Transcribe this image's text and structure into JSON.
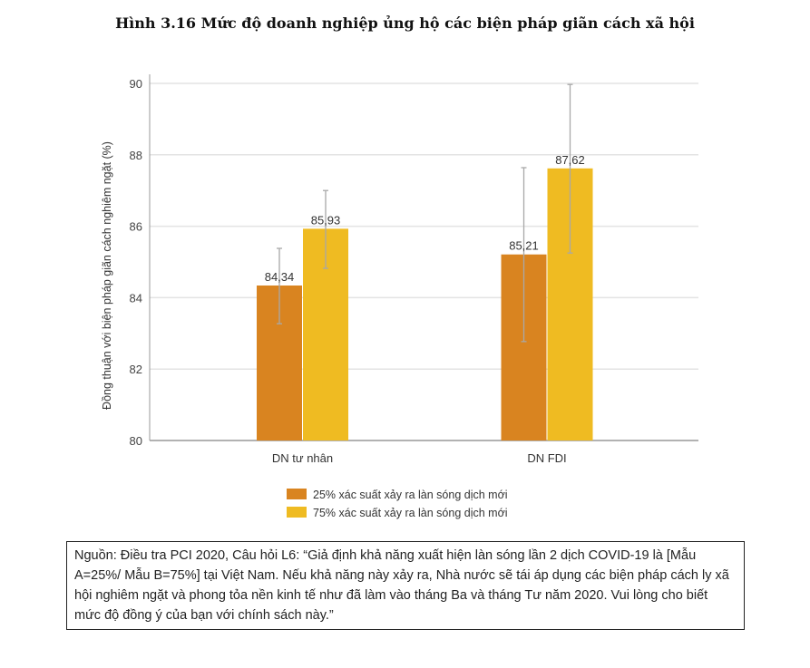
{
  "chart_data": {
    "type": "bar",
    "title": "Hình 3.16 Mức độ doanh nghiệp ủng hộ các biện pháp giãn cách xã hội",
    "ylabel": "Đồng thuận với biện pháp giãn cách nghiêm ngặt (%)",
    "xlabel": "",
    "ylim": [
      80,
      90
    ],
    "yticks": [
      80,
      82,
      84,
      86,
      88,
      90
    ],
    "grid": true,
    "legend_position": "bottom",
    "categories": [
      "DN tư nhân",
      "DN FDI"
    ],
    "series": [
      {
        "name": "25% xác suất xảy ra làn sóng dịch mới",
        "color": "#d98420",
        "values": [
          84.34,
          85.21
        ],
        "labels": [
          "84,34",
          "85,21"
        ],
        "error_low": [
          83.27,
          82.77
        ],
        "error_high": [
          85.38,
          87.64
        ]
      },
      {
        "name": "75% xác suất xảy ra làn sóng dịch mới",
        "color": "#efbb22",
        "values": [
          85.93,
          87.62
        ],
        "labels": [
          "85,93",
          "87,62"
        ],
        "error_low": [
          84.82,
          85.25
        ],
        "error_high": [
          87.0,
          89.97
        ]
      }
    ]
  },
  "note": "Nguồn: Điều tra PCI 2020, Câu hỏi L6: “Giả định khả năng xuất hiện làn sóng lần 2 dịch COVID-19 là [Mẫu A=25%/ Mẫu B=75%] tại Việt Nam. Nếu khả năng này xảy ra, Nhà nước sẽ tái áp dụng các biện pháp cách ly xã hội nghiêm ngặt và phong tỏa nền kinh tế như đã làm vào tháng Ba và tháng Tư năm 2020. Vui lòng cho biết mức độ đồng ý của bạn với chính sách này.”"
}
